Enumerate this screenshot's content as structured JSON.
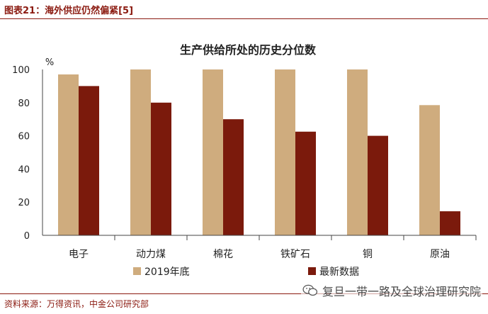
{
  "figure_title": "图表21：海外供应仍然偏紧[5]",
  "source_note": "资料来源：万得资讯，中金公司研究部",
  "watermark": "复旦一带一路及全球治理研究院",
  "chart_data": {
    "type": "bar",
    "title": "生产供给所处的历史分位数",
    "ylabel": "%",
    "ylim": [
      0,
      100
    ],
    "yticks": [
      0,
      20,
      40,
      60,
      80,
      100
    ],
    "grid": false,
    "legend_position": "bottom-center",
    "categories": [
      "电子",
      "动力煤",
      "棉花",
      "铁矿石",
      "铜",
      "原油"
    ],
    "series": [
      {
        "name": "2019年底",
        "color": "#cfac7e",
        "values": [
          97,
          100,
          100,
          100,
          100,
          78.5
        ]
      },
      {
        "name": "最新数据",
        "color": "#7b1a0c",
        "values": [
          90,
          80,
          70,
          62.5,
          60,
          14.5
        ]
      }
    ]
  }
}
